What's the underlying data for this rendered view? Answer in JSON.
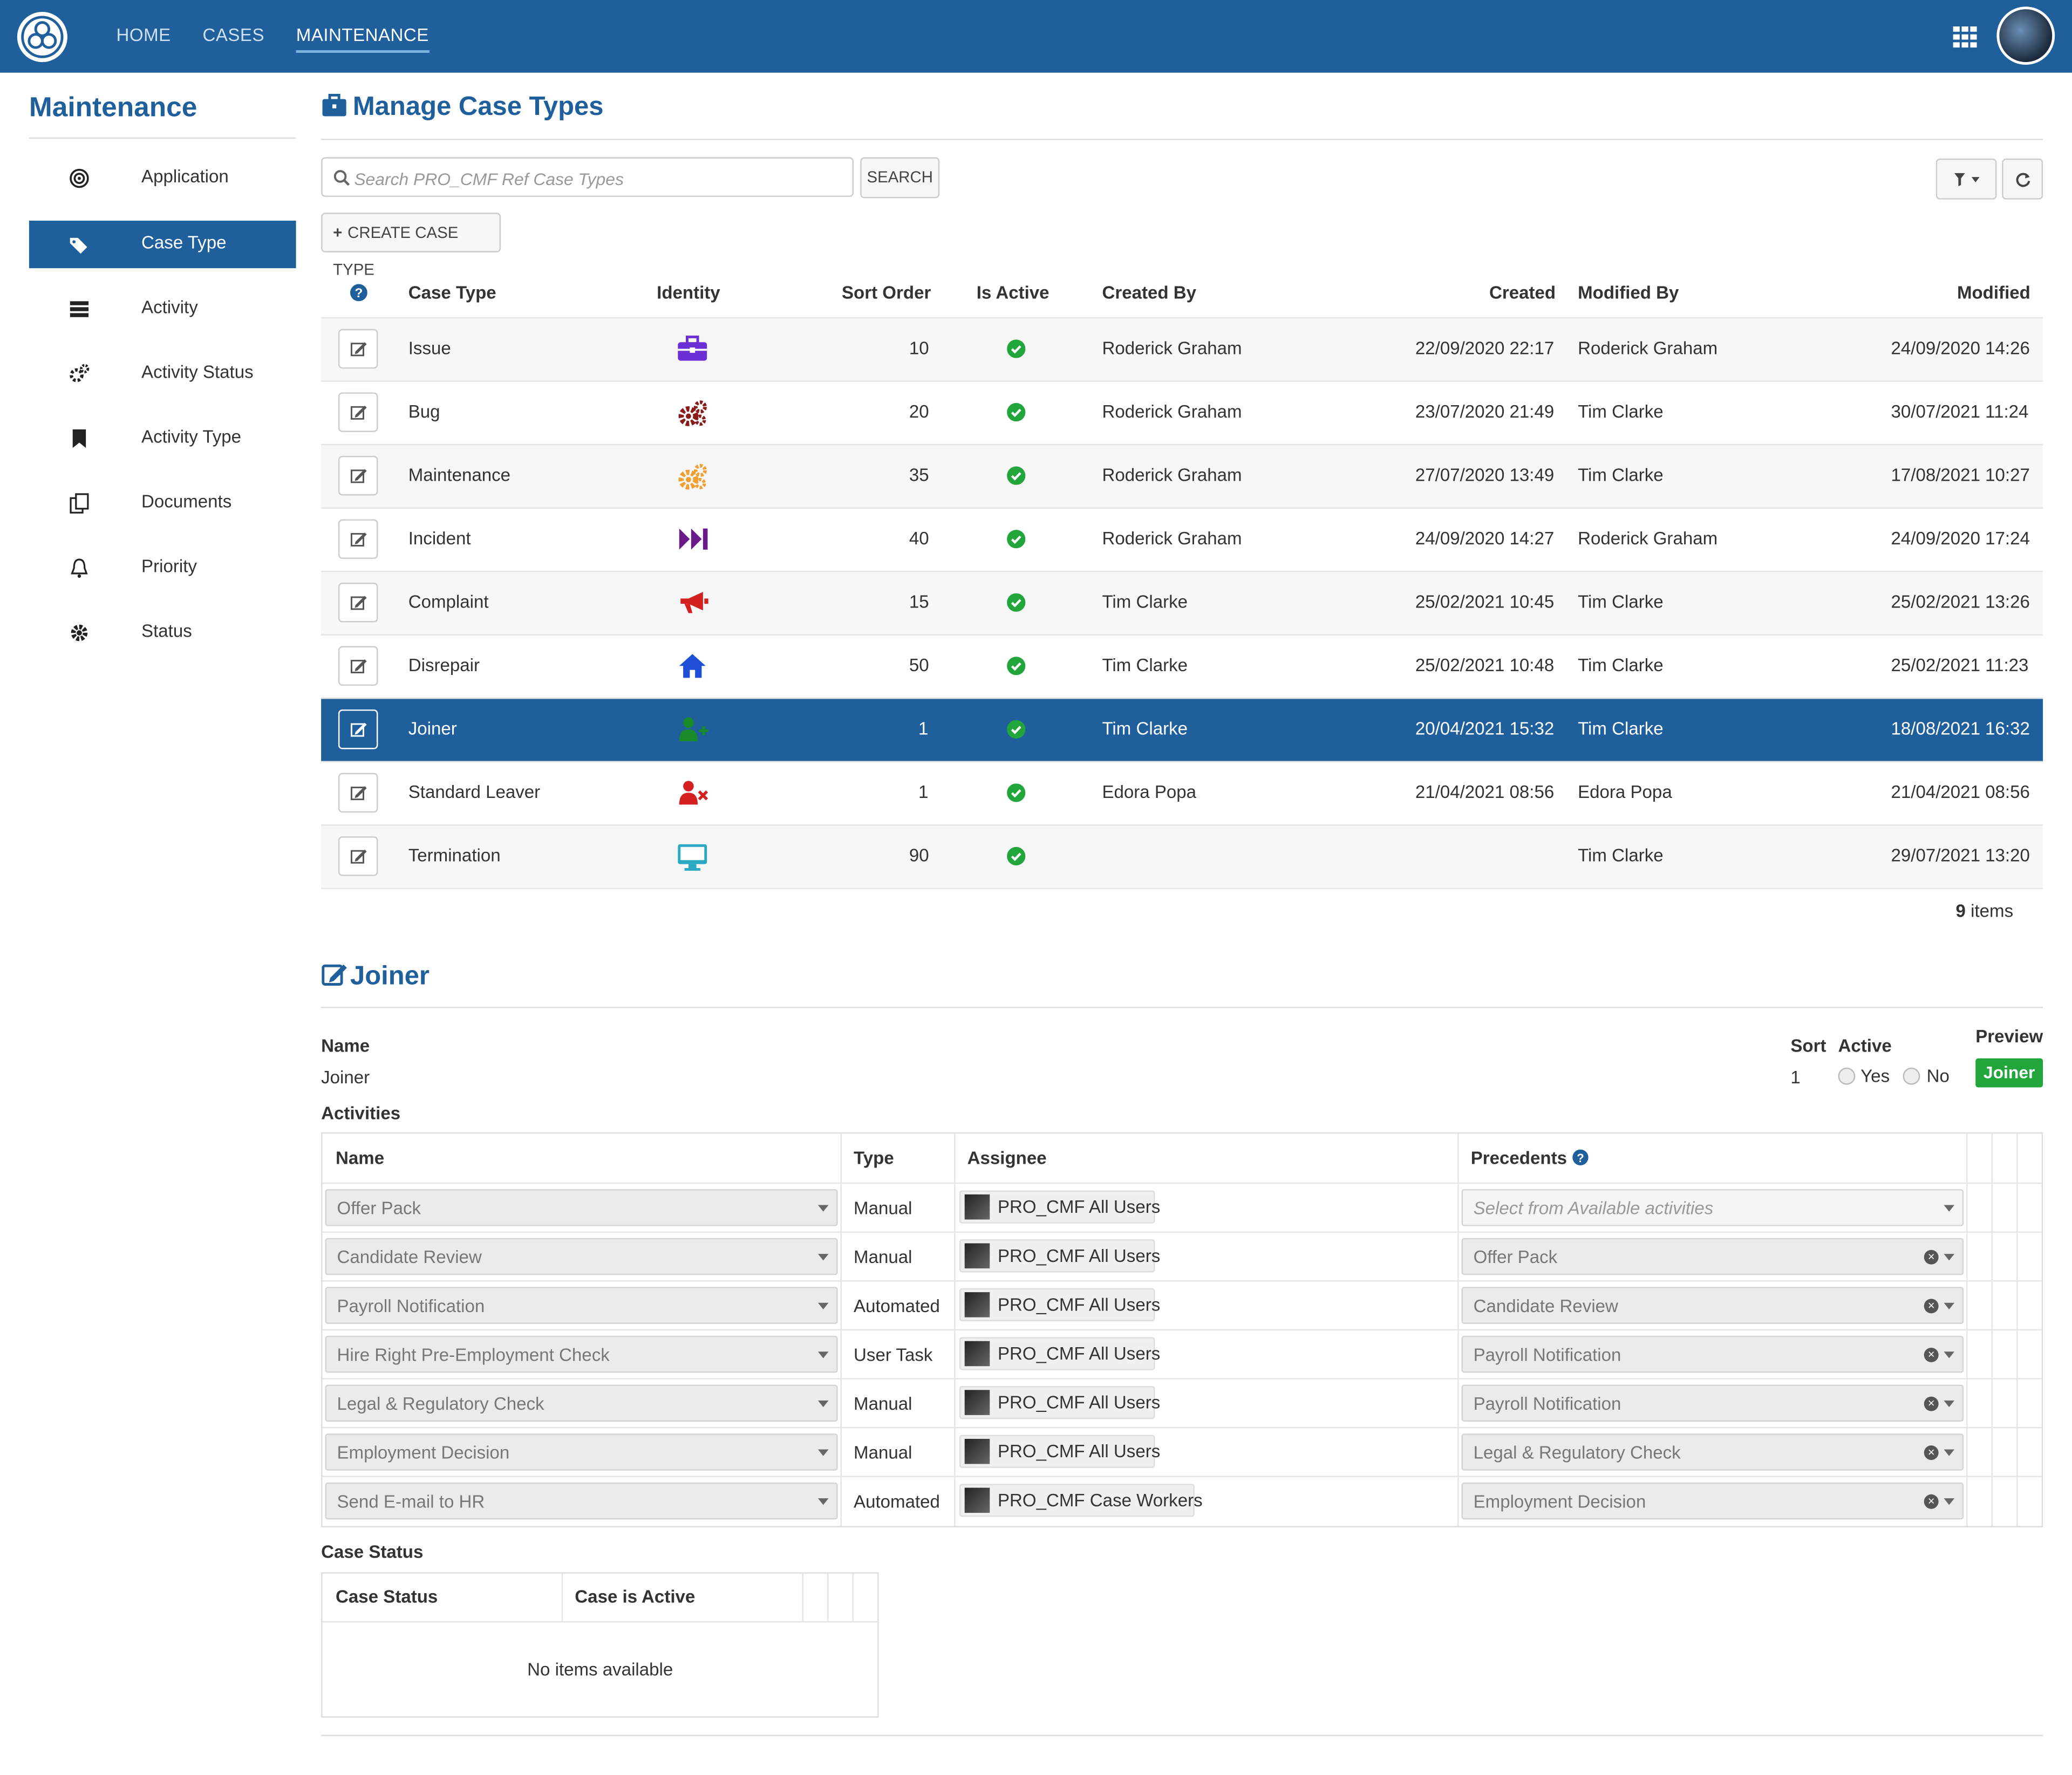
{
  "nav": {
    "items": [
      "HOME",
      "CASES",
      "MAINTENANCE"
    ],
    "active": "MAINTENANCE"
  },
  "sidebar": {
    "title": "Maintenance",
    "items": [
      {
        "label": "Application",
        "icon": "bullseye-icon"
      },
      {
        "label": "Case Type",
        "icon": "tags-icon",
        "active": true
      },
      {
        "label": "Activity",
        "icon": "list-icon"
      },
      {
        "label": "Activity Status",
        "icon": "cogs-icon"
      },
      {
        "label": "Activity Type",
        "icon": "bookmark-icon"
      },
      {
        "label": "Documents",
        "icon": "documents-icon"
      },
      {
        "label": "Priority",
        "icon": "bell-icon"
      },
      {
        "label": "Status",
        "icon": "gear-icon"
      }
    ]
  },
  "main": {
    "title": "Manage Case Types",
    "search_placeholder": "Search PRO_CMF Ref Case Types",
    "search_button": "SEARCH",
    "create_button": "CREATE CASE TYPE",
    "columns": [
      "Case Type",
      "Identity",
      "Sort Order",
      "Is Active",
      "Created By",
      "Created",
      "Modified By",
      "Modified"
    ],
    "rows": [
      {
        "case_type": "Issue",
        "icon": "briefcase-icon",
        "icon_color": "#6b2fd6",
        "sort": "10",
        "created_by": "Roderick Graham",
        "created": "22/09/2020 22:17",
        "modified_by": "Roderick Graham",
        "modified": "24/09/2020 14:26"
      },
      {
        "case_type": "Bug",
        "icon": "cogs-icon",
        "icon_color": "#8b1a1a",
        "sort": "20",
        "created_by": "Roderick Graham",
        "created": "23/07/2020 21:49",
        "modified_by": "Tim Clarke",
        "modified": "30/07/2021 11:24"
      },
      {
        "case_type": "Maintenance",
        "icon": "cogs-icon",
        "icon_color": "#f0a030",
        "sort": "35",
        "created_by": "Roderick Graham",
        "created": "27/07/2020 13:49",
        "modified_by": "Tim Clarke",
        "modified": "17/08/2021 10:27"
      },
      {
        "case_type": "Incident",
        "icon": "fast-forward-icon",
        "icon_color": "#6a1b8a",
        "sort": "40",
        "created_by": "Roderick Graham",
        "created": "24/09/2020 14:27",
        "modified_by": "Roderick Graham",
        "modified": "24/09/2020 17:24"
      },
      {
        "case_type": "Complaint",
        "icon": "bullhorn-icon",
        "icon_color": "#d42020",
        "sort": "15",
        "created_by": "Tim Clarke",
        "created": "25/02/2021 10:45",
        "modified_by": "Tim Clarke",
        "modified": "25/02/2021 13:26"
      },
      {
        "case_type": "Disrepair",
        "icon": "home-icon",
        "icon_color": "#1f4fd6",
        "sort": "50",
        "created_by": "Tim Clarke",
        "created": "25/02/2021 10:48",
        "modified_by": "Tim Clarke",
        "modified": "25/02/2021 11:23"
      },
      {
        "case_type": "Joiner",
        "icon": "user-plus-icon",
        "icon_color": "#1a8a2a",
        "sort": "1",
        "created_by": "Tim Clarke",
        "created": "20/04/2021 15:32",
        "modified_by": "Tim Clarke",
        "modified": "18/08/2021 16:32"
      },
      {
        "case_type": "Standard Leaver",
        "icon": "user-times-icon",
        "icon_color": "#d42020",
        "sort": "1",
        "created_by": "Edora Popa",
        "created": "21/04/2021 08:56",
        "modified_by": "Edora Popa",
        "modified": "21/04/2021 08:56"
      },
      {
        "case_type": "Termination",
        "icon": "desktop-icon",
        "icon_color": "#2aa8c4",
        "sort": "90",
        "created_by": "",
        "created": "",
        "modified_by": "Tim Clarke",
        "modified": "29/07/2021 13:20"
      }
    ],
    "count": "9",
    "count_label": "items"
  },
  "detail": {
    "title": "Joiner",
    "name_label": "Name",
    "name_value": "Joiner",
    "sort_label": "Sort",
    "sort_value": "1",
    "active_label": "Active",
    "yes": "Yes",
    "no": "No",
    "preview_label": "Preview",
    "preview_badge": "Joiner",
    "activities_label": "Activities",
    "act_columns": [
      "Name",
      "Type",
      "Assignee",
      "Precedents"
    ],
    "activities": [
      {
        "name": "Offer Pack",
        "type": "Manual",
        "assignee": "PRO_CMF All Users",
        "precedent": "",
        "precedent_placeholder": "Select from Available activities"
      },
      {
        "name": "Candidate Review",
        "type": "Manual",
        "assignee": "PRO_CMF All Users",
        "precedent": "Offer Pack"
      },
      {
        "name": "Payroll Notification",
        "type": "Automated",
        "assignee": "PRO_CMF All Users",
        "precedent": "Candidate Review"
      },
      {
        "name": "Hire Right Pre-Employment Check",
        "type": "User Task",
        "assignee": "PRO_CMF All Users",
        "precedent": "Payroll Notification"
      },
      {
        "name": "Legal & Regulatory Check",
        "type": "Manual",
        "assignee": "PRO_CMF All Users",
        "precedent": "Payroll Notification"
      },
      {
        "name": "Employment Decision",
        "type": "Manual",
        "assignee": "PRO_CMF All Users",
        "precedent": "Legal & Regulatory Check"
      },
      {
        "name": "Send E-mail to HR",
        "type": "Automated",
        "assignee": "PRO_CMF Case Workers",
        "precedent": "Employment Decision"
      }
    ],
    "case_status_label": "Case Status",
    "cs_columns": [
      "Case Status",
      "Case is Active"
    ],
    "cs_empty": "No items available"
  },
  "colors": {
    "brand": "#1f5f9c",
    "success": "#22a53a"
  }
}
